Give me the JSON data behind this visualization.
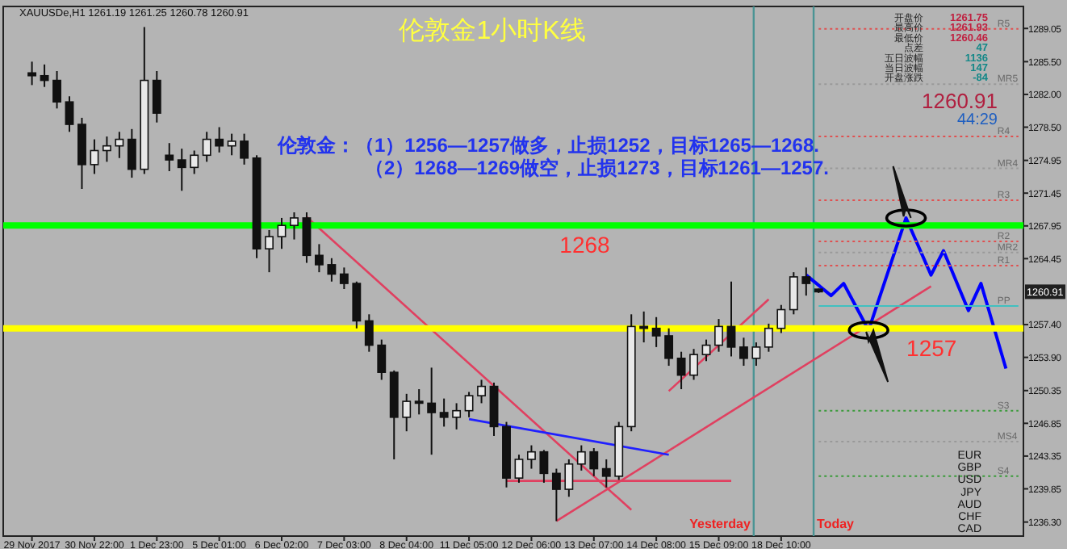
{
  "chart_data": {
    "type": "candlestick",
    "title": "伦敦金1小时K线",
    "color": "#111111",
    "categories": [
      "29 Nov 2017",
      null,
      null,
      null,
      null,
      "30 Nov 22:00",
      null,
      null,
      null,
      null,
      "1 Dec 23:00",
      null,
      null,
      null,
      null,
      "5 Dec 01:00",
      null,
      null,
      null,
      null,
      "6 Dec 02:00",
      null,
      null,
      null,
      null,
      "7 Dec 03:00",
      null,
      null,
      null,
      null,
      "8 Dec 04:00",
      null,
      null,
      null,
      null,
      "11 Dec 05:00",
      null,
      null,
      null,
      null,
      "12 Dec 06:00",
      null,
      null,
      null,
      null,
      "13 Dec 07:00",
      null,
      null,
      null,
      null,
      "14 Dec 08:00",
      null,
      null,
      null,
      null,
      "15 Dec 09:00",
      null,
      null,
      null,
      null,
      "18 Dec 10:00",
      null,
      null,
      null,
      null,
      null,
      null,
      null,
      null,
      null,
      null,
      null,
      null,
      null,
      null,
      null,
      null,
      null,
      null,
      null
    ],
    "ohlc": [
      [
        1284.3,
        1285.5,
        1283.0,
        1284.0
      ],
      [
        1284.0,
        1285.2,
        1282.8,
        1283.5
      ],
      [
        1283.5,
        1284.5,
        1280.5,
        1281.2
      ],
      [
        1281.2,
        1281.8,
        1278.0,
        1278.8
      ],
      [
        1278.8,
        1279.5,
        1271.9,
        1274.5
      ],
      [
        1274.5,
        1277.2,
        1273.5,
        1276.0
      ],
      [
        1276.0,
        1277.5,
        1274.8,
        1276.5
      ],
      [
        1276.5,
        1278.0,
        1275.2,
        1277.2
      ],
      [
        1277.2,
        1278.3,
        1273.1,
        1274.0
      ],
      [
        1274.0,
        1289.2,
        1273.5,
        1283.5
      ],
      [
        1283.5,
        1284.5,
        1279.0,
        1280.0
      ],
      [
        1275.5,
        1276.8,
        1273.8,
        1275.0
      ],
      [
        1275.0,
        1276.2,
        1271.7,
        1274.2
      ],
      [
        1274.2,
        1276.0,
        1273.5,
        1275.5
      ],
      [
        1275.5,
        1278.0,
        1274.8,
        1277.2
      ],
      [
        1277.2,
        1278.5,
        1275.8,
        1276.5
      ],
      [
        1276.5,
        1277.8,
        1275.5,
        1277.0
      ],
      [
        1277.0,
        1277.8,
        1274.5,
        1275.2
      ],
      [
        1275.2,
        1275.5,
        1264.5,
        1265.5
      ],
      [
        1265.5,
        1267.5,
        1263.0,
        1266.8
      ],
      [
        1266.8,
        1268.8,
        1265.5,
        1268.0
      ],
      [
        1268.0,
        1269.4,
        1266.5,
        1268.8
      ],
      [
        1268.8,
        1269.4,
        1264.0,
        1264.8
      ],
      [
        1264.8,
        1266.0,
        1263.0,
        1263.8
      ],
      [
        1263.8,
        1264.5,
        1262.0,
        1262.8
      ],
      [
        1262.8,
        1263.5,
        1261.2,
        1261.8
      ],
      [
        1261.8,
        1262.0,
        1257.0,
        1257.8
      ],
      [
        1257.8,
        1258.5,
        1254.5,
        1255.2
      ],
      [
        1255.2,
        1255.8,
        1251.5,
        1252.3
      ],
      [
        1252.3,
        1252.5,
        1243.0,
        1247.5
      ],
      [
        1247.5,
        1250.0,
        1246.0,
        1249.2
      ],
      [
        1249.2,
        1250.5,
        1247.8,
        1249.0
      ],
      [
        1249.0,
        1252.8,
        1243.5,
        1248.0
      ],
      [
        1248.0,
        1249.5,
        1246.5,
        1247.5
      ],
      [
        1247.5,
        1249.0,
        1246.2,
        1248.2
      ],
      [
        1248.2,
        1250.2,
        1247.5,
        1249.8
      ],
      [
        1249.8,
        1251.5,
        1249.0,
        1250.8
      ],
      [
        1250.8,
        1251.2,
        1245.5,
        1246.5
      ],
      [
        1246.5,
        1247.0,
        1240.0,
        1241.0
      ],
      [
        1241.0,
        1243.5,
        1240.5,
        1243.0
      ],
      [
        1243.0,
        1244.5,
        1242.0,
        1243.8
      ],
      [
        1243.8,
        1244.0,
        1240.5,
        1241.5
      ],
      [
        1241.5,
        1242.0,
        1236.4,
        1239.8
      ],
      [
        1239.8,
        1243.0,
        1239.0,
        1242.5
      ],
      [
        1242.5,
        1244.5,
        1241.8,
        1243.8
      ],
      [
        1243.8,
        1244.2,
        1241.2,
        1242.0
      ],
      [
        1242.0,
        1243.0,
        1240.0,
        1241.2
      ],
      [
        1241.2,
        1247.0,
        1240.8,
        1246.5
      ],
      [
        1246.5,
        1258.5,
        1246.0,
        1257.2
      ],
      [
        1257.2,
        1258.8,
        1255.5,
        1257.0
      ],
      [
        1257.0,
        1258.2,
        1255.0,
        1256.2
      ],
      [
        1256.2,
        1257.0,
        1253.0,
        1253.8
      ],
      [
        1253.8,
        1254.5,
        1250.5,
        1252.0
      ],
      [
        1252.0,
        1254.8,
        1251.5,
        1254.2
      ],
      [
        1254.2,
        1255.8,
        1253.5,
        1255.2
      ],
      [
        1255.2,
        1258.0,
        1254.5,
        1257.2
      ],
      [
        1257.2,
        1262.0,
        1254.0,
        1255.0
      ],
      [
        1255.0,
        1256.0,
        1253.0,
        1253.8
      ],
      [
        1253.8,
        1255.5,
        1253.0,
        1255.0
      ],
      [
        1255.0,
        1257.5,
        1254.5,
        1257.0
      ],
      [
        1257.0,
        1259.5,
        1256.5,
        1259.0
      ],
      [
        1259.0,
        1263.0,
        1258.5,
        1262.5
      ],
      [
        1262.5,
        1263.5,
        1260.5,
        1261.8
      ],
      [
        1261.19,
        1261.25,
        1260.78,
        1260.91
      ],
      null,
      null,
      null,
      null,
      null,
      null,
      null,
      null,
      null,
      null,
      null,
      null,
      null,
      null,
      null,
      null
    ],
    "ylim": [
      1234.8,
      1291.4
    ],
    "yticks": [
      1289.05,
      {
        "value": 1285.5,
        "label": "1285.50"
      },
      {
        "value": 1282,
        "label": "1282.00"
      },
      {
        "value": 1278.5,
        "label": "1278.50"
      },
      1274.95,
      1271.45,
      1267.95,
      1264.45,
      {
        "value": 1257.4,
        "label": "1257.40"
      },
      {
        "value": 1253.9,
        "label": "1253.90"
      },
      1250.35,
      1246.85,
      1243.35,
      1239.85,
      {
        "value": 1236.3,
        "label": "1236.30"
      }
    ],
    "ref_lines": [
      {
        "axis": "y",
        "value": 1268,
        "label": "1268",
        "color": "#00ff00"
      },
      {
        "axis": "y",
        "value": 1257,
        "label": "1257",
        "color": "#ffff00"
      }
    ],
    "series": [
      {
        "type": "line",
        "color": "#e04060",
        "values": [
          null,
          null,
          null,
          null,
          null,
          null,
          null,
          null,
          null,
          null,
          null,
          null,
          null,
          null,
          null,
          null,
          null,
          null,
          null,
          null,
          null,
          null,
          1268.9,
          null,
          null,
          null,
          null,
          null,
          null,
          null,
          null,
          null,
          null,
          null,
          null,
          null,
          null,
          null,
          null,
          null,
          null,
          null,
          null,
          null,
          null,
          null,
          null,
          null,
          1237.6,
          null,
          null,
          null,
          null,
          null,
          null,
          null,
          null,
          null,
          null,
          null,
          null,
          null,
          null,
          null,
          null,
          null,
          null,
          null,
          null,
          null,
          null,
          null,
          null,
          null,
          null,
          null,
          null,
          null,
          null,
          null
        ]
      },
      {
        "type": "line",
        "color": "#e04060",
        "values": [
          null,
          null,
          null,
          null,
          null,
          null,
          null,
          null,
          null,
          null,
          null,
          null,
          null,
          null,
          null,
          null,
          null,
          null,
          null,
          null,
          null,
          null,
          null,
          null,
          null,
          null,
          null,
          null,
          null,
          null,
          null,
          null,
          null,
          null,
          null,
          null,
          null,
          null,
          null,
          null,
          null,
          null,
          1236.4,
          null,
          null,
          null,
          null,
          null,
          null,
          null,
          null,
          null,
          null,
          null,
          null,
          null,
          null,
          null,
          null,
          null,
          null,
          null,
          null,
          null,
          null,
          null,
          null,
          null,
          null,
          null,
          null,
          null,
          1261.5,
          null,
          null,
          null,
          null,
          null,
          null,
          null
        ]
      },
      {
        "type": "line",
        "color": "#e04060",
        "values": [
          null,
          null,
          null,
          null,
          null,
          null,
          null,
          null,
          null,
          null,
          null,
          null,
          null,
          null,
          null,
          null,
          null,
          null,
          null,
          null,
          null,
          null,
          null,
          null,
          null,
          null,
          null,
          null,
          null,
          null,
          null,
          null,
          null,
          null,
          null,
          null,
          null,
          null,
          null,
          null,
          null,
          null,
          null,
          null,
          null,
          null,
          null,
          null,
          null,
          null,
          null,
          1250.3,
          null,
          null,
          null,
          null,
          null,
          null,
          null,
          1260.1,
          null,
          null,
          null,
          null,
          null,
          null,
          null,
          null,
          null,
          null,
          null,
          null,
          null,
          null,
          null,
          null,
          null,
          null,
          null,
          null
        ]
      },
      {
        "type": "line",
        "color": "#e04060",
        "values": [
          null,
          null,
          null,
          null,
          null,
          null,
          null,
          null,
          null,
          null,
          null,
          null,
          null,
          null,
          null,
          null,
          null,
          null,
          null,
          null,
          null,
          null,
          null,
          null,
          null,
          null,
          null,
          null,
          null,
          null,
          null,
          null,
          null,
          null,
          null,
          null,
          null,
          null,
          1240.7,
          null,
          null,
          null,
          null,
          null,
          null,
          null,
          null,
          null,
          null,
          null,
          null,
          null,
          null,
          null,
          null,
          null,
          1240.7,
          null,
          null,
          null,
          null,
          null,
          null,
          null,
          null,
          null,
          null,
          null,
          null,
          null,
          null,
          null,
          null,
          null,
          null,
          null,
          null,
          null,
          null,
          null
        ]
      },
      {
        "type": "line",
        "color": "#2020ff",
        "values": [
          null,
          null,
          null,
          null,
          null,
          null,
          null,
          null,
          null,
          null,
          null,
          null,
          null,
          null,
          null,
          null,
          null,
          null,
          null,
          null,
          null,
          null,
          null,
          null,
          null,
          null,
          null,
          null,
          null,
          null,
          null,
          null,
          null,
          null,
          null,
          1247.3,
          null,
          null,
          null,
          null,
          null,
          null,
          null,
          null,
          null,
          null,
          null,
          null,
          null,
          null,
          null,
          1243.5,
          null,
          null,
          null,
          null,
          null,
          null,
          null,
          null,
          null,
          null,
          null,
          null,
          null,
          null,
          null,
          null,
          null,
          null,
          null,
          null,
          null,
          null,
          null,
          null,
          null,
          null,
          null,
          null
        ]
      },
      {
        "type": "line",
        "color": "#0000ff",
        "values": [
          null,
          null,
          null,
          null,
          null,
          null,
          null,
          null,
          null,
          null,
          null,
          null,
          null,
          null,
          null,
          null,
          null,
          null,
          null,
          null,
          null,
          null,
          null,
          null,
          null,
          null,
          null,
          null,
          null,
          null,
          null,
          null,
          null,
          null,
          null,
          null,
          null,
          null,
          null,
          null,
          null,
          null,
          null,
          null,
          null,
          null,
          null,
          null,
          null,
          null,
          null,
          null,
          null,
          null,
          null,
          null,
          null,
          null,
          null,
          null,
          null,
          null,
          1262.7,
          null,
          1260.5,
          1261.8,
          null,
          1256.8,
          null,
          null,
          1268.8,
          null,
          1262.7,
          1265.3,
          null,
          1258.9,
          1261.8,
          null,
          1252.7,
          null
        ]
      },
      {
        "type": "line",
        "name": "R5",
        "line_style": "dotted",
        "color": "#e05050",
        "values": [
          null,
          null,
          null,
          null,
          null,
          null,
          null,
          null,
          null,
          null,
          null,
          null,
          null,
          null,
          null,
          null,
          null,
          null,
          null,
          null,
          null,
          null,
          null,
          null,
          null,
          null,
          null,
          null,
          null,
          null,
          null,
          null,
          null,
          null,
          null,
          null,
          null,
          null,
          null,
          null,
          null,
          null,
          null,
          null,
          null,
          null,
          null,
          null,
          null,
          null,
          null,
          null,
          null,
          null,
          null,
          null,
          null,
          null,
          null,
          null,
          null,
          null,
          null,
          1289,
          null,
          null,
          null,
          null,
          null,
          null,
          null,
          null,
          null,
          null,
          null,
          null,
          null,
          null,
          null,
          1289
        ]
      },
      {
        "type": "line",
        "name": "MR5",
        "line_style": "dotted",
        "color": "#999999",
        "values": [
          null,
          null,
          null,
          null,
          null,
          null,
          null,
          null,
          null,
          null,
          null,
          null,
          null,
          null,
          null,
          null,
          null,
          null,
          null,
          null,
          null,
          null,
          null,
          null,
          null,
          null,
          null,
          null,
          null,
          null,
          null,
          null,
          null,
          null,
          null,
          null,
          null,
          null,
          null,
          null,
          null,
          null,
          null,
          null,
          null,
          null,
          null,
          null,
          null,
          null,
          null,
          null,
          null,
          null,
          null,
          null,
          null,
          null,
          null,
          null,
          null,
          null,
          null,
          1283.1,
          null,
          null,
          null,
          null,
          null,
          null,
          null,
          null,
          null,
          null,
          null,
          null,
          null,
          null,
          null,
          1283.1
        ]
      },
      {
        "type": "line",
        "name": "R4",
        "line_style": "dotted",
        "color": "#e05050",
        "values": [
          null,
          null,
          null,
          null,
          null,
          null,
          null,
          null,
          null,
          null,
          null,
          null,
          null,
          null,
          null,
          null,
          null,
          null,
          null,
          null,
          null,
          null,
          null,
          null,
          null,
          null,
          null,
          null,
          null,
          null,
          null,
          null,
          null,
          null,
          null,
          null,
          null,
          null,
          null,
          null,
          null,
          null,
          null,
          null,
          null,
          null,
          null,
          null,
          null,
          null,
          null,
          null,
          null,
          null,
          null,
          null,
          null,
          null,
          null,
          null,
          null,
          null,
          null,
          1277.5,
          null,
          null,
          null,
          null,
          null,
          null,
          null,
          null,
          null,
          null,
          null,
          null,
          null,
          null,
          null,
          1277.5
        ]
      },
      {
        "type": "line",
        "name": "MR4",
        "line_style": "dotted",
        "color": "#999999",
        "values": [
          null,
          null,
          null,
          null,
          null,
          null,
          null,
          null,
          null,
          null,
          null,
          null,
          null,
          null,
          null,
          null,
          null,
          null,
          null,
          null,
          null,
          null,
          null,
          null,
          null,
          null,
          null,
          null,
          null,
          null,
          null,
          null,
          null,
          null,
          null,
          null,
          null,
          null,
          null,
          null,
          null,
          null,
          null,
          null,
          null,
          null,
          null,
          null,
          null,
          null,
          null,
          null,
          null,
          null,
          null,
          null,
          null,
          null,
          null,
          null,
          null,
          null,
          null,
          1274.1,
          null,
          null,
          null,
          null,
          null,
          null,
          null,
          null,
          null,
          null,
          null,
          null,
          null,
          null,
          null,
          1274.1
        ]
      },
      {
        "type": "line",
        "name": "R3",
        "line_style": "dotted",
        "color": "#e05050",
        "values": [
          null,
          null,
          null,
          null,
          null,
          null,
          null,
          null,
          null,
          null,
          null,
          null,
          null,
          null,
          null,
          null,
          null,
          null,
          null,
          null,
          null,
          null,
          null,
          null,
          null,
          null,
          null,
          null,
          null,
          null,
          null,
          null,
          null,
          null,
          null,
          null,
          null,
          null,
          null,
          null,
          null,
          null,
          null,
          null,
          null,
          null,
          null,
          null,
          null,
          null,
          null,
          null,
          null,
          null,
          null,
          null,
          null,
          null,
          null,
          null,
          null,
          null,
          null,
          1270.7,
          null,
          null,
          null,
          null,
          null,
          null,
          null,
          null,
          null,
          null,
          null,
          null,
          null,
          null,
          null,
          1270.7
        ]
      },
      {
        "type": "line",
        "name": "R2",
        "line_style": "dotted",
        "color": "#e05050",
        "values": [
          null,
          null,
          null,
          null,
          null,
          null,
          null,
          null,
          null,
          null,
          null,
          null,
          null,
          null,
          null,
          null,
          null,
          null,
          null,
          null,
          null,
          null,
          null,
          null,
          null,
          null,
          null,
          null,
          null,
          null,
          null,
          null,
          null,
          null,
          null,
          null,
          null,
          null,
          null,
          null,
          null,
          null,
          null,
          null,
          null,
          null,
          null,
          null,
          null,
          null,
          null,
          null,
          null,
          null,
          null,
          null,
          null,
          null,
          null,
          null,
          null,
          null,
          null,
          1266.3,
          null,
          null,
          null,
          null,
          null,
          null,
          null,
          null,
          null,
          null,
          null,
          null,
          null,
          null,
          null,
          1266.3
        ]
      },
      {
        "type": "line",
        "name": "MR2",
        "line_style": "dotted",
        "color": "#999999",
        "values": [
          null,
          null,
          null,
          null,
          null,
          null,
          null,
          null,
          null,
          null,
          null,
          null,
          null,
          null,
          null,
          null,
          null,
          null,
          null,
          null,
          null,
          null,
          null,
          null,
          null,
          null,
          null,
          null,
          null,
          null,
          null,
          null,
          null,
          null,
          null,
          null,
          null,
          null,
          null,
          null,
          null,
          null,
          null,
          null,
          null,
          null,
          null,
          null,
          null,
          null,
          null,
          null,
          null,
          null,
          null,
          null,
          null,
          null,
          null,
          null,
          null,
          null,
          null,
          1265.1,
          null,
          null,
          null,
          null,
          null,
          null,
          null,
          null,
          null,
          null,
          null,
          null,
          null,
          null,
          null,
          1265.1
        ]
      },
      {
        "type": "line",
        "name": "R1",
        "line_style": "dotted",
        "color": "#e05050",
        "values": [
          null,
          null,
          null,
          null,
          null,
          null,
          null,
          null,
          null,
          null,
          null,
          null,
          null,
          null,
          null,
          null,
          null,
          null,
          null,
          null,
          null,
          null,
          null,
          null,
          null,
          null,
          null,
          null,
          null,
          null,
          null,
          null,
          null,
          null,
          null,
          null,
          null,
          null,
          null,
          null,
          null,
          null,
          null,
          null,
          null,
          null,
          null,
          null,
          null,
          null,
          null,
          null,
          null,
          null,
          null,
          null,
          null,
          null,
          null,
          null,
          null,
          null,
          null,
          1263.7,
          null,
          null,
          null,
          null,
          null,
          null,
          null,
          null,
          null,
          null,
          null,
          null,
          null,
          null,
          null,
          1263.7
        ]
      },
      {
        "type": "line",
        "name": "PP",
        "line_style": "solid",
        "color": "#40c0c0",
        "values": [
          null,
          null,
          null,
          null,
          null,
          null,
          null,
          null,
          null,
          null,
          null,
          null,
          null,
          null,
          null,
          null,
          null,
          null,
          null,
          null,
          null,
          null,
          null,
          null,
          null,
          null,
          null,
          null,
          null,
          null,
          null,
          null,
          null,
          null,
          null,
          null,
          null,
          null,
          null,
          null,
          null,
          null,
          null,
          null,
          null,
          null,
          null,
          null,
          null,
          null,
          null,
          null,
          null,
          null,
          null,
          null,
          null,
          null,
          null,
          null,
          null,
          null,
          null,
          1259.4,
          null,
          null,
          null,
          null,
          null,
          null,
          null,
          null,
          null,
          null,
          null,
          null,
          null,
          null,
          null,
          1259.4
        ]
      },
      {
        "type": "line",
        "name": "S3",
        "line_style": "dotted",
        "color": "#3a9a3a",
        "values": [
          null,
          null,
          null,
          null,
          null,
          null,
          null,
          null,
          null,
          null,
          null,
          null,
          null,
          null,
          null,
          null,
          null,
          null,
          null,
          null,
          null,
          null,
          null,
          null,
          null,
          null,
          null,
          null,
          null,
          null,
          null,
          null,
          null,
          null,
          null,
          null,
          null,
          null,
          null,
          null,
          null,
          null,
          null,
          null,
          null,
          null,
          null,
          null,
          null,
          null,
          null,
          null,
          null,
          null,
          null,
          null,
          null,
          null,
          null,
          null,
          null,
          null,
          null,
          1248.2,
          null,
          null,
          null,
          null,
          null,
          null,
          null,
          null,
          null,
          null,
          null,
          null,
          null,
          null,
          null,
          1248.2
        ]
      },
      {
        "type": "line",
        "name": "MS4",
        "line_style": "dotted",
        "color": "#999999",
        "values": [
          null,
          null,
          null,
          null,
          null,
          null,
          null,
          null,
          null,
          null,
          null,
          null,
          null,
          null,
          null,
          null,
          null,
          null,
          null,
          null,
          null,
          null,
          null,
          null,
          null,
          null,
          null,
          null,
          null,
          null,
          null,
          null,
          null,
          null,
          null,
          null,
          null,
          null,
          null,
          null,
          null,
          null,
          null,
          null,
          null,
          null,
          null,
          null,
          null,
          null,
          null,
          null,
          null,
          null,
          null,
          null,
          null,
          null,
          null,
          null,
          null,
          null,
          null,
          1244.9,
          null,
          null,
          null,
          null,
          null,
          null,
          null,
          null,
          null,
          null,
          null,
          null,
          null,
          null,
          null,
          1244.9
        ]
      },
      {
        "type": "line",
        "name": "S4",
        "line_style": "dotted",
        "color": "#3a9a3a",
        "values": [
          null,
          null,
          null,
          null,
          null,
          null,
          null,
          null,
          null,
          null,
          null,
          null,
          null,
          null,
          null,
          null,
          null,
          null,
          null,
          null,
          null,
          null,
          null,
          null,
          null,
          null,
          null,
          null,
          null,
          null,
          null,
          null,
          null,
          null,
          null,
          null,
          null,
          null,
          null,
          null,
          null,
          null,
          null,
          null,
          null,
          null,
          null,
          null,
          null,
          null,
          null,
          null,
          null,
          null,
          null,
          null,
          null,
          null,
          null,
          null,
          null,
          null,
          null,
          1241.2,
          null,
          null,
          null,
          null,
          null,
          null,
          null,
          null,
          null,
          null,
          null,
          null,
          null,
          null,
          null,
          1241.2
        ]
      }
    ],
    "annotations": [
      "XAUUSDe,H1  1261.19 1261.25 1260.78 1260.91",
      "伦敦金：（1）1256—1257做多，止损1252，目标1265—1268.",
      "（2）1268—1269做空，止损1273，目标1261—1257.",
      "开盘价 1261.75",
      "最高价 1261.93",
      "最低价 1260.46",
      "点差 47",
      "五日波幅 1136",
      "当日波幅 147",
      "开盘涨跌 -84",
      "1260.91",
      "44:29",
      "EUR",
      "GBP",
      "USD",
      "JPY",
      "AUD",
      "CHF",
      "CAD",
      {
        "text": "1260.91",
        "y": 1260.91
      },
      "Yesterday",
      "Today"
    ]
  }
}
